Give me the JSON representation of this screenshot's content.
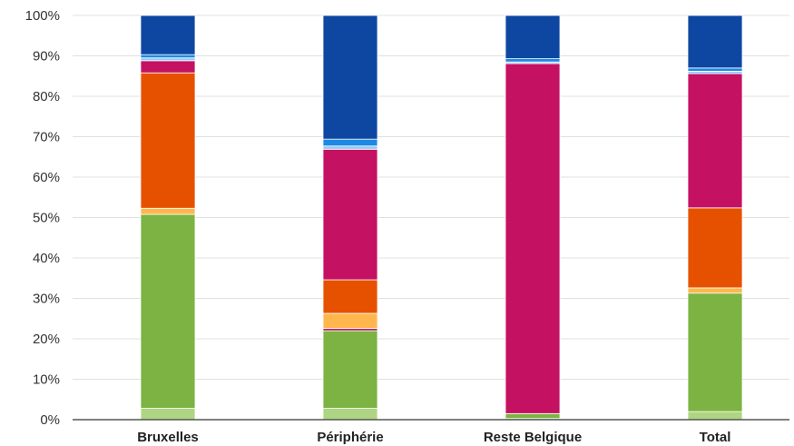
{
  "chart_data": {
    "type": "bar",
    "stacked": true,
    "percent": true,
    "title": "",
    "xlabel": "",
    "ylabel": "",
    "ylim": [
      0,
      100
    ],
    "y_ticks": [
      "0%",
      "10%",
      "20%",
      "30%",
      "40%",
      "50%",
      "60%",
      "70%",
      "80%",
      "90%",
      "100%"
    ],
    "grid": true,
    "legend": "none",
    "categories": [
      "Bruxelles",
      "Périphérie",
      "Reste Belgique",
      "Total"
    ],
    "series": [
      {
        "color": "#aed581",
        "values": [
          2.8,
          2.8,
          0.3,
          2.0
        ]
      },
      {
        "color": "#7cb342",
        "values": [
          48.0,
          19.2,
          1.2,
          29.3
        ]
      },
      {
        "color": "#c2185b",
        "values": [
          0.0,
          0.6,
          0.0,
          0.0
        ]
      },
      {
        "color": "#ffb74d",
        "values": [
          1.5,
          3.7,
          0.0,
          1.3
        ]
      },
      {
        "color": "#e65100",
        "values": [
          33.5,
          8.3,
          0.0,
          19.8
        ]
      },
      {
        "color": "#c51162",
        "values": [
          3.0,
          32.3,
          86.6,
          33.2
        ]
      },
      {
        "color": "#90caf9",
        "values": [
          0.7,
          0.8,
          0.4,
          0.6
        ]
      },
      {
        "color": "#1e88e5",
        "values": [
          0.8,
          1.7,
          0.8,
          0.8
        ]
      },
      {
        "color": "#0d47a1",
        "values": [
          9.7,
          30.6,
          10.7,
          13.0
        ]
      }
    ]
  }
}
